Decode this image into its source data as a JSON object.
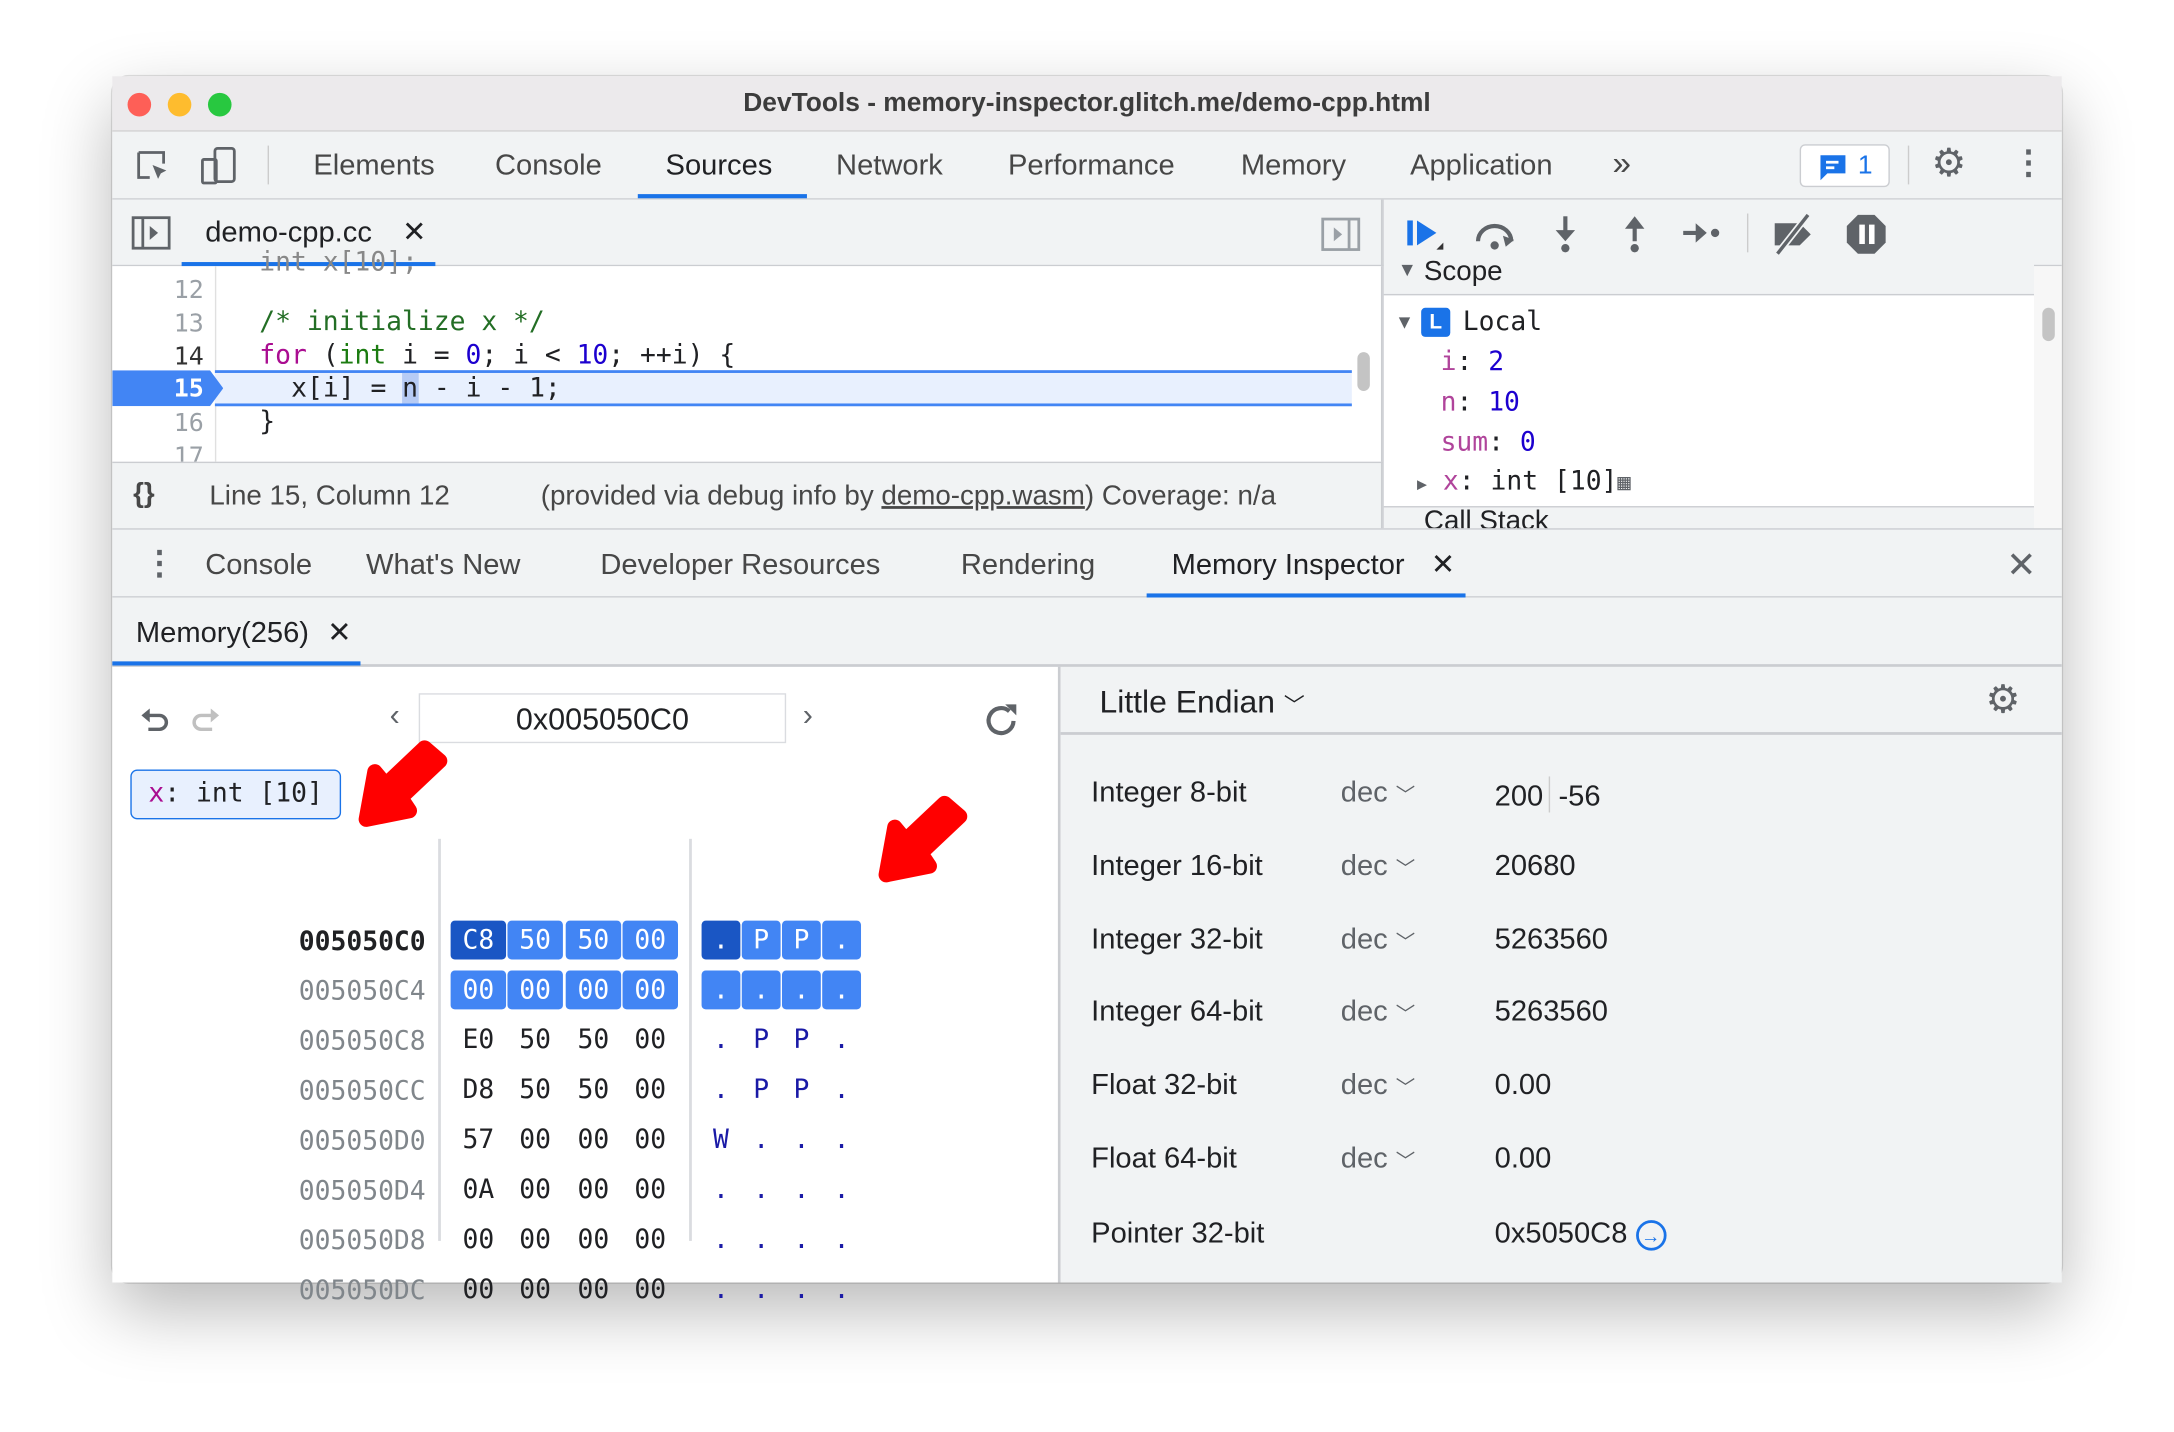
{
  "window": {
    "title": "DevTools - memory-inspector.glitch.me/demo-cpp.html"
  },
  "main_tabs": [
    {
      "label": "Elements"
    },
    {
      "label": "Console"
    },
    {
      "label": "Sources",
      "active": true
    },
    {
      "label": "Network"
    },
    {
      "label": "Performance"
    },
    {
      "label": "Memory"
    },
    {
      "label": "Application"
    }
  ],
  "toolbar": {
    "more_tabs": "»",
    "issues_count": "1"
  },
  "editor": {
    "file_tab": "demo-cpp.cc",
    "lines": [
      {
        "n": "12",
        "text": ""
      },
      {
        "n": "13",
        "text": "/* initialize x */"
      },
      {
        "n": "14",
        "text": "for (int i = 0; i < 10; ++i) {"
      },
      {
        "n": "15",
        "text": "x[i] = n - i - 1;"
      },
      {
        "n": "16",
        "text": "}"
      },
      {
        "n": "17",
        "text": ""
      }
    ],
    "status": {
      "braces": "{}",
      "position": "Line 15, Column 12",
      "provided_prefix": "(provided via debug info by ",
      "wasm_link": "demo-cpp.wasm",
      "provided_suffix": ")",
      "coverage": "Coverage: n/a"
    }
  },
  "scope": {
    "header": "Scope",
    "local_badge": "L",
    "local_label": "Local",
    "vars": [
      {
        "name": "i",
        "value": "2"
      },
      {
        "name": "n",
        "value": "10"
      },
      {
        "name": "sum",
        "value": "0"
      },
      {
        "name": "x",
        "value": "int [10]"
      }
    ],
    "call_stack": "Call Stack"
  },
  "drawer": {
    "tabs": [
      {
        "label": "Console"
      },
      {
        "label": "What's New"
      },
      {
        "label": "Developer Resources"
      },
      {
        "label": "Rendering"
      },
      {
        "label": "Memory Inspector",
        "active": true
      }
    ]
  },
  "memory": {
    "tab": "Memory(256)",
    "address": "0x005050C0",
    "chip": {
      "name": "x",
      "type": "int [10]"
    },
    "rows": [
      {
        "addr": "005050C0",
        "bytes": [
          "C8",
          "50",
          "50",
          "00"
        ],
        "chars": [
          ".",
          "P",
          "P",
          "."
        ]
      },
      {
        "addr": "005050C4",
        "bytes": [
          "00",
          "00",
          "00",
          "00"
        ],
        "chars": [
          ".",
          ".",
          ".",
          "."
        ]
      },
      {
        "addr": "005050C8",
        "bytes": [
          "E0",
          "50",
          "50",
          "00"
        ],
        "chars": [
          ".",
          "P",
          "P",
          "."
        ]
      },
      {
        "addr": "005050CC",
        "bytes": [
          "D8",
          "50",
          "50",
          "00"
        ],
        "chars": [
          ".",
          "P",
          "P",
          "."
        ]
      },
      {
        "addr": "005050D0",
        "bytes": [
          "57",
          "00",
          "00",
          "00"
        ],
        "chars": [
          "W",
          ".",
          ".",
          "."
        ]
      },
      {
        "addr": "005050D4",
        "bytes": [
          "0A",
          "00",
          "00",
          "00"
        ],
        "chars": [
          ".",
          ".",
          ".",
          "."
        ]
      },
      {
        "addr": "005050D8",
        "bytes": [
          "00",
          "00",
          "00",
          "00"
        ],
        "chars": [
          ".",
          ".",
          ".",
          "."
        ]
      },
      {
        "addr": "005050DC",
        "bytes": [
          "00",
          "00",
          "00",
          "00"
        ],
        "chars": [
          ".",
          ".",
          ".",
          "."
        ]
      }
    ]
  },
  "interpreter": {
    "endianness": "Little Endian",
    "rows": [
      {
        "label": "Integer 8-bit",
        "mode": "dec",
        "value": "200",
        "value2": "-56"
      },
      {
        "label": "Integer 16-bit",
        "mode": "dec",
        "value": "20680"
      },
      {
        "label": "Integer 32-bit",
        "mode": "dec",
        "value": "5263560"
      },
      {
        "label": "Integer 64-bit",
        "mode": "dec",
        "value": "5263560"
      },
      {
        "label": "Float 32-bit",
        "mode": "dec",
        "value": "0.00"
      },
      {
        "label": "Float 64-bit",
        "mode": "dec",
        "value": "0.00"
      },
      {
        "label": "Pointer 32-bit",
        "mode": "",
        "value": "0x5050C8"
      }
    ]
  },
  "colors": {
    "accent": "#1a73e8",
    "highlight": "#4285f4",
    "annotation_arrow": "#ff0000"
  }
}
